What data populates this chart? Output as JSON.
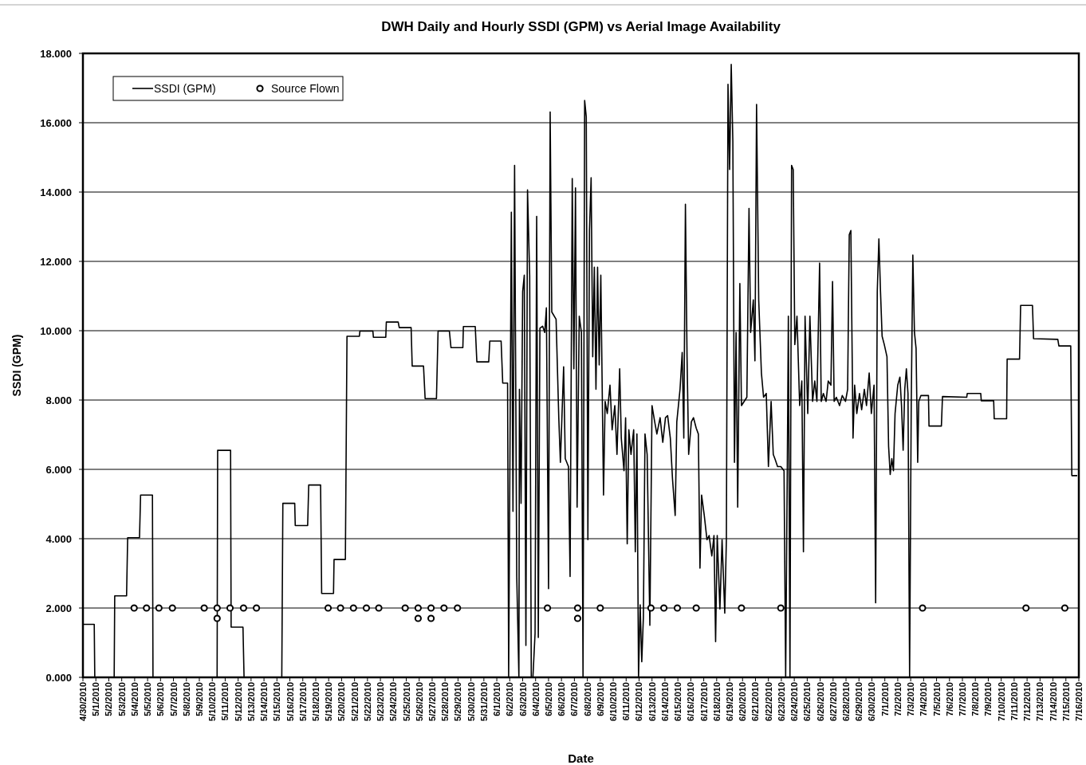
{
  "chart_data": {
    "type": "line",
    "title": "DWH Daily and Hourly SSDI (GPM) vs Aerial Image Availability",
    "xlabel": "Date",
    "ylabel": "SSDI (GPM)",
    "xlim": [
      "2010-04-30",
      "2010-07-16"
    ],
    "xticks": [
      {
        "value": "2010-04-30",
        "label": "4/30/2010"
      },
      {
        "value": "2010-05-01",
        "label": "5/1/2010"
      },
      {
        "value": "2010-05-02",
        "label": "5/2/2010"
      },
      {
        "value": "2010-05-03",
        "label": "5/3/2010"
      },
      {
        "value": "2010-05-04",
        "label": "5/4/2010"
      },
      {
        "value": "2010-05-05",
        "label": "5/5/2010"
      },
      {
        "value": "2010-05-06",
        "label": "5/6/2010"
      },
      {
        "value": "2010-05-07",
        "label": "5/7/2010"
      },
      {
        "value": "2010-05-08",
        "label": "5/8/2010"
      },
      {
        "value": "2010-05-09",
        "label": "5/9/2010"
      },
      {
        "value": "2010-05-10",
        "label": "5/10/2010"
      },
      {
        "value": "2010-05-11",
        "label": "5/11/2010"
      },
      {
        "value": "2010-05-12",
        "label": "5/12/2010"
      },
      {
        "value": "2010-05-13",
        "label": "5/13/2010"
      },
      {
        "value": "2010-05-14",
        "label": "5/14/2010"
      },
      {
        "value": "2010-05-15",
        "label": "5/15/2010"
      },
      {
        "value": "2010-05-16",
        "label": "5/16/2010"
      },
      {
        "value": "2010-05-17",
        "label": "5/17/2010"
      },
      {
        "value": "2010-05-18",
        "label": "5/18/2010"
      },
      {
        "value": "2010-05-19",
        "label": "5/19/2010"
      },
      {
        "value": "2010-05-20",
        "label": "5/20/2010"
      },
      {
        "value": "2010-05-21",
        "label": "5/21/2010"
      },
      {
        "value": "2010-05-22",
        "label": "5/22/2010"
      },
      {
        "value": "2010-05-23",
        "label": "5/23/2010"
      },
      {
        "value": "2010-05-24",
        "label": "5/24/2010"
      },
      {
        "value": "2010-05-25",
        "label": "5/25/2010"
      },
      {
        "value": "2010-05-26",
        "label": "5/26/2010"
      },
      {
        "value": "2010-05-27",
        "label": "5/27/2010"
      },
      {
        "value": "2010-05-28",
        "label": "5/28/2010"
      },
      {
        "value": "2010-05-29",
        "label": "5/29/2010"
      },
      {
        "value": "2010-05-30",
        "label": "5/30/2010"
      },
      {
        "value": "2010-05-31",
        "label": "5/31/2010"
      },
      {
        "value": "2010-06-01",
        "label": "6/1/2010"
      },
      {
        "value": "2010-06-02",
        "label": "6/2/2010"
      },
      {
        "value": "2010-06-03",
        "label": "6/3/2010"
      },
      {
        "value": "2010-06-04",
        "label": "6/4/2010"
      },
      {
        "value": "2010-06-05",
        "label": "6/5/2010"
      },
      {
        "value": "2010-06-06",
        "label": "6/6/2010"
      },
      {
        "value": "2010-06-07",
        "label": "6/7/2010"
      },
      {
        "value": "2010-06-08",
        "label": "6/8/2010"
      },
      {
        "value": "2010-06-09",
        "label": "6/9/2010"
      },
      {
        "value": "2010-06-10",
        "label": "6/10/2010"
      },
      {
        "value": "2010-06-11",
        "label": "6/11/2010"
      },
      {
        "value": "2010-06-12",
        "label": "6/12/2010"
      },
      {
        "value": "2010-06-13",
        "label": "6/13/2010"
      },
      {
        "value": "2010-06-14",
        "label": "6/14/2010"
      },
      {
        "value": "2010-06-15",
        "label": "6/15/2010"
      },
      {
        "value": "2010-06-16",
        "label": "6/16/2010"
      },
      {
        "value": "2010-06-17",
        "label": "6/17/2010"
      },
      {
        "value": "2010-06-18",
        "label": "6/18/2010"
      },
      {
        "value": "2010-06-19",
        "label": "6/19/2010"
      },
      {
        "value": "2010-06-20",
        "label": "6/20/2010"
      },
      {
        "value": "2010-06-21",
        "label": "6/21/2010"
      },
      {
        "value": "2010-06-22",
        "label": "6/22/2010"
      },
      {
        "value": "2010-06-23",
        "label": "6/23/2010"
      },
      {
        "value": "2010-06-24",
        "label": "6/24/2010"
      },
      {
        "value": "2010-06-25",
        "label": "6/25/2010"
      },
      {
        "value": "2010-06-26",
        "label": "6/26/2010"
      },
      {
        "value": "2010-06-27",
        "label": "6/27/2010"
      },
      {
        "value": "2010-06-28",
        "label": "6/28/2010"
      },
      {
        "value": "2010-06-29",
        "label": "6/29/2010"
      },
      {
        "value": "2010-06-30",
        "label": "6/30/2010"
      },
      {
        "value": "2010-07-01",
        "label": "7/1/2010"
      },
      {
        "value": "2010-07-02",
        "label": "7/2/2010"
      },
      {
        "value": "2010-07-03",
        "label": "7/3/2010"
      },
      {
        "value": "2010-07-04",
        "label": "7/4/2010"
      },
      {
        "value": "2010-07-05",
        "label": "7/5/2010"
      },
      {
        "value": "2010-07-06",
        "label": "7/6/2010"
      },
      {
        "value": "2010-07-07",
        "label": "7/7/2010"
      },
      {
        "value": "2010-07-08",
        "label": "7/8/2010"
      },
      {
        "value": "2010-07-09",
        "label": "7/9/2010"
      },
      {
        "value": "2010-07-10",
        "label": "7/10/2010"
      },
      {
        "value": "2010-07-11",
        "label": "7/11/2010"
      },
      {
        "value": "2010-07-12",
        "label": "7/12/2010"
      },
      {
        "value": "2010-07-13",
        "label": "7/13/2010"
      },
      {
        "value": "2010-07-14",
        "label": "7/14/2010"
      },
      {
        "value": "2010-07-15",
        "label": "7/15/2010"
      },
      {
        "value": "2010-07-16",
        "label": "7/16/2010"
      }
    ],
    "ylim": [
      0,
      18
    ],
    "yticks": [
      {
        "value": 0,
        "label": "0.000"
      },
      {
        "value": 2,
        "label": "2.000"
      },
      {
        "value": 4,
        "label": "4.000"
      },
      {
        "value": 6,
        "label": "6.000"
      },
      {
        "value": 8,
        "label": "8.000"
      },
      {
        "value": 10,
        "label": "10.000"
      },
      {
        "value": 12,
        "label": "12.000"
      },
      {
        "value": 14,
        "label": "14.000"
      },
      {
        "value": 16,
        "label": "16.000"
      },
      {
        "value": 18,
        "label": "18.000"
      }
    ],
    "grid": "y",
    "legend": "top left",
    "series": [
      {
        "name": "SSDI (GPM)",
        "color": "#000000",
        "line_style": "solid",
        "x": [
          "2010-04-30T00:00",
          "2010-04-30T21:00",
          "2010-04-30T22:00",
          "2010-05-02T10:00",
          "2010-05-02T11:00",
          "2010-05-03T09:00",
          "2010-05-03T11:00",
          "2010-05-04T09:00",
          "2010-05-04T11:00",
          "2010-05-05T09:00",
          "2010-05-05T10:00",
          "2010-05-10T09:00",
          "2010-05-10T10:00",
          "2010-05-11T10:00",
          "2010-05-11T11:00",
          "2010-05-12T09:00",
          "2010-05-12T11:00",
          "2010-05-15T09:00",
          "2010-05-15T11:00",
          "2010-05-16T09:00",
          "2010-05-16T10:00",
          "2010-05-17T09:00",
          "2010-05-17T11:00",
          "2010-05-18T09:00",
          "2010-05-18T11:00",
          "2010-05-19T09:00",
          "2010-05-19T10:00",
          "2010-05-20T07:00",
          "2010-05-20T10:00",
          "2010-05-21T09:00",
          "2010-05-21T10:00",
          "2010-05-22T10:00",
          "2010-05-22T11:00",
          "2010-05-23T10:00",
          "2010-05-23T11:00",
          "2010-05-24T09:00",
          "2010-05-24T11:00",
          "2010-05-25T09:00",
          "2010-05-25T11:00",
          "2010-05-26T08:00",
          "2010-05-26T11:00",
          "2010-05-27T08:00",
          "2010-05-27T11:00",
          "2010-05-28T08:00",
          "2010-05-28T11:00",
          "2010-05-29T09:00",
          "2010-05-29T10:00",
          "2010-05-30T08:00",
          "2010-05-30T11:00",
          "2010-05-31T09:00",
          "2010-05-31T11:00",
          "2010-06-01T08:00",
          "2010-06-01T11:00",
          "2010-06-01T19:00",
          "2010-06-01T20:00",
          "2010-06-01T22:00",
          "2010-06-02T03:00",
          "2010-06-02T06:00",
          "2010-06-02T09:00",
          "2010-06-02T13:00",
          "2010-06-02T17:00",
          "2010-06-02T18:00",
          "2010-06-02T21:00",
          "2010-06-03T00:00",
          "2010-06-03T03:00",
          "2010-06-03T06:00",
          "2010-06-03T09:00",
          "2010-06-03T13:00",
          "2010-06-03T16:00",
          "2010-06-03T19:00",
          "2010-06-03T23:00",
          "2010-06-04T02:00",
          "2010-06-04T05:00",
          "2010-06-04T08:00",
          "2010-06-04T13:00",
          "2010-06-04T17:00",
          "2010-06-04T20:00",
          "2010-06-05T00:00",
          "2010-06-05T03:00",
          "2010-06-05T06:00",
          "2010-06-05T14:00",
          "2010-06-05T19:00",
          "2010-06-05T22:00",
          "2010-06-06T04:00",
          "2010-06-06T07:00",
          "2010-06-06T13:00",
          "2010-06-06T16:00",
          "2010-06-06T20:00",
          "2010-06-06T23:00",
          "2010-06-07T02:00",
          "2010-06-07T05:00",
          "2010-06-07T09:00",
          "2010-06-07T13:00",
          "2010-06-07T16:00",
          "2010-06-07T19:00",
          "2010-06-07T22:00",
          "2010-06-08T01:00",
          "2010-06-08T04:00",
          "2010-06-08T07:00",
          "2010-06-08T10:00",
          "2010-06-08T13:00",
          "2010-06-08T16:00",
          "2010-06-08T19:00",
          "2010-06-08T22:00",
          "2010-06-09T01:00",
          "2010-06-09T06:00",
          "2010-06-09T09:00",
          "2010-06-09T13:00",
          "2010-06-09T18:00",
          "2010-06-09T22:00",
          "2010-06-10T03:00",
          "2010-06-10T07:00",
          "2010-06-10T12:00",
          "2010-06-10T15:00",
          "2010-06-10T20:00",
          "2010-06-10T23:00",
          "2010-06-11T02:00",
          "2010-06-11T05:00",
          "2010-06-11T09:00",
          "2010-06-11T14:00",
          "2010-06-11T17:00",
          "2010-06-11T20:00",
          "2010-06-11T23:00",
          "2010-06-12T02:00",
          "2010-06-12T05:00",
          "2010-06-12T08:00",
          "2010-06-12T11:00",
          "2010-06-12T15:00",
          "2010-06-12T20:00",
          "2010-06-13T00:00",
          "2010-06-13T05:00",
          "2010-06-13T09:00",
          "2010-06-13T15:00",
          "2010-06-13T20:00",
          "2010-06-14T01:00",
          "2010-06-14T05:00",
          "2010-06-14T10:00",
          "2010-06-14T14:00",
          "2010-06-14T19:00",
          "2010-06-14T22:00",
          "2010-06-15T04:00",
          "2010-06-15T08:00",
          "2010-06-15T11:00",
          "2010-06-15T14:00",
          "2010-06-15T17:00",
          "2010-06-15T20:00",
          "2010-06-16T01:00",
          "2010-06-16T05:00",
          "2010-06-16T10:00",
          "2010-06-16T14:00",
          "2010-06-16T17:00",
          "2010-06-16T20:00",
          "2010-06-17T01:00",
          "2010-06-17T06:00",
          "2010-06-17T10:00",
          "2010-06-17T15:00",
          "2010-06-17T19:00",
          "2010-06-17T22:00",
          "2010-06-18T01:00",
          "2010-06-18T06:00",
          "2010-06-18T10:00",
          "2010-06-18T15:00",
          "2010-06-18T18:00",
          "2010-06-18T21:00",
          "2010-06-19T00:00",
          "2010-06-19T03:00",
          "2010-06-19T06:00",
          "2010-06-19T09:00",
          "2010-06-19T12:00",
          "2010-06-19T15:00",
          "2010-06-19T19:00",
          "2010-06-19T22:00",
          "2010-06-20T03:00",
          "2010-06-20T08:00",
          "2010-06-20T12:00",
          "2010-06-20T15:00",
          "2010-06-20T20:00",
          "2010-06-20T23:00",
          "2010-06-21T02:00",
          "2010-06-21T06:00",
          "2010-06-21T11:00",
          "2010-06-21T15:00",
          "2010-06-21T20:00",
          "2010-06-22T00:00",
          "2010-06-22T05:00",
          "2010-06-22T09:00",
          "2010-06-22T12:00",
          "2010-06-22T17:00",
          "2010-06-22T23:00",
          "2010-06-23T05:00",
          "2010-06-23T08:00",
          "2010-06-23T11:00",
          "2010-06-23T13:00",
          "2010-06-23T16:00",
          "2010-06-23T19:00",
          "2010-06-23T22:00",
          "2010-06-24T01:00",
          "2010-06-24T05:00",
          "2010-06-24T10:00",
          "2010-06-24T14:00",
          "2010-06-24T17:00",
          "2010-06-24T20:00",
          "2010-06-25T01:00",
          "2010-06-25T05:00",
          "2010-06-25T10:00",
          "2010-06-25T14:00",
          "2010-06-25T18:00",
          "2010-06-25T23:00",
          "2010-06-26T02:00",
          "2010-06-26T06:00",
          "2010-06-26T11:00",
          "2010-06-26T15:00",
          "2010-06-26T20:00",
          "2010-06-26T23:00",
          "2010-06-27T02:00",
          "2010-06-27T06:00",
          "2010-06-27T12:00",
          "2010-06-27T17:00",
          "2010-06-27T23:00",
          "2010-06-28T03:00",
          "2010-06-28T06:00",
          "2010-06-28T09:00",
          "2010-06-28T13:00",
          "2010-06-28T16:00",
          "2010-06-28T20:00",
          "2010-06-29T01:00",
          "2010-06-29T05:00",
          "2010-06-29T10:00",
          "2010-06-29T14:00",
          "2010-06-29T19:00",
          "2010-06-29T23:00",
          "2010-06-30T04:00",
          "2010-06-30T07:00",
          "2010-06-30T10:00",
          "2010-06-30T13:00",
          "2010-06-30T16:00",
          "2010-06-30T19:00",
          "2010-06-30T23:00",
          "2010-07-01T04:00",
          "2010-07-01T07:00",
          "2010-07-01T10:00",
          "2010-07-01T13:00",
          "2010-07-01T16:00",
          "2010-07-01T19:00",
          "2010-07-02T00:00",
          "2010-07-02T04:00",
          "2010-07-02T07:00",
          "2010-07-02T10:00",
          "2010-07-02T13:00",
          "2010-07-02T16:00",
          "2010-07-02T19:00",
          "2010-07-02T22:00",
          "2010-07-03T01:00",
          "2010-07-03T04:00",
          "2010-07-03T07:00",
          "2010-07-03T10:00",
          "2010-07-03T13:00",
          "2010-07-03T15:00",
          "2010-07-03T19:00",
          "2010-07-04T09:00",
          "2010-07-04T10:00",
          "2010-07-05T09:00",
          "2010-07-05T11:00",
          "2010-07-07T08:00",
          "2010-07-07T09:00",
          "2010-07-08T10:00",
          "2010-07-08T11:00",
          "2010-07-09T10:00",
          "2010-07-09T11:00",
          "2010-07-10T10:00",
          "2010-07-10T11:00",
          "2010-07-11T10:00",
          "2010-07-11T12:00",
          "2010-07-12T10:00",
          "2010-07-12T12:00",
          "2010-07-14T09:00",
          "2010-07-14T11:00",
          "2010-07-15T09:00",
          "2010-07-15T11:00",
          "2010-07-15T21:00"
        ],
        "values": [
          1.53,
          1.53,
          0,
          0,
          2.35,
          2.35,
          4.03,
          4.03,
          5.26,
          5.26,
          0,
          0,
          6.55,
          6.55,
          1.45,
          1.45,
          0,
          0,
          5.02,
          5.02,
          4.38,
          4.38,
          5.55,
          5.55,
          2.42,
          2.42,
          3.4,
          3.4,
          9.84,
          9.84,
          9.99,
          9.99,
          9.81,
          9.81,
          10.25,
          10.25,
          10.09,
          10.09,
          8.98,
          8.98,
          8.04,
          8.04,
          9.99,
          9.99,
          9.51,
          9.51,
          10.12,
          10.12,
          9.1,
          9.1,
          9.7,
          9.7,
          8.49,
          8.49,
          8.49,
          0,
          13.42,
          4.79,
          14.77,
          2.91,
          0,
          8.31,
          5.02,
          11.13,
          11.6,
          0.92,
          14.06,
          11.6,
          0,
          0,
          1.27,
          13.3,
          1.15,
          10.07,
          10.13,
          9.95,
          10.66,
          2.56,
          16.31,
          10.54,
          10.33,
          7.49,
          6.2,
          8.96,
          6.31,
          6.08,
          2.91,
          14.39,
          8.9,
          14.12,
          4.91,
          10.42,
          9.95,
          0,
          16.64,
          16.17,
          3.97,
          12.89,
          14.41,
          9.25,
          11.83,
          8.31,
          11.83,
          9.01,
          11.6,
          5.26,
          7.96,
          7.61,
          8.43,
          7.14,
          7.84,
          6.43,
          8.9,
          6.9,
          5.96,
          7.49,
          3.85,
          7.14,
          6.43,
          7.14,
          3.62,
          7.02,
          0,
          2.09,
          0.45,
          1.74,
          7.02,
          6.43,
          1.5,
          7.84,
          7.37,
          7.02,
          7.49,
          6.78,
          7.49,
          7.55,
          6.9,
          5.73,
          4.67,
          7.37,
          8.31,
          9.37,
          6.9,
          13.65,
          9.25,
          6.43,
          7.37,
          7.49,
          7.19,
          7.02,
          3.15,
          5.26,
          4.67,
          3.97,
          4.09,
          3.5,
          4.09,
          1.03,
          4.09,
          1.97,
          3.97,
          1.85,
          3.97,
          17.11,
          14.65,
          17.68,
          15.47,
          6.2,
          9.95,
          4.91,
          11.36,
          7.84,
          7.96,
          8.08,
          13.53,
          9.95,
          10.89,
          9.13,
          16.53,
          10.89,
          8.78,
          8.08,
          8.19,
          6.08,
          7.96,
          6.43,
          6.31,
          6.08,
          6.08,
          5.96,
          0,
          5.96,
          10.42,
          0,
          14.77,
          14.65,
          9.6,
          10.42,
          7.84,
          8.55,
          3.62,
          10.42,
          7.61,
          10.42,
          7.96,
          8.55,
          7.96,
          11.95,
          7.96,
          8.19,
          7.96,
          8.55,
          8.43,
          11.42,
          7.96,
          8.08,
          7.84,
          8.13,
          7.96,
          8.31,
          12.77,
          12.89,
          6.9,
          8.43,
          7.61,
          8.19,
          7.72,
          8.31,
          7.84,
          8.78,
          7.61,
          8.43,
          2.15,
          11.13,
          12.65,
          11.13,
          9.84,
          9.6,
          9.25,
          6.67,
          5.85,
          6.31,
          5.96,
          7.61,
          8.43,
          8.66,
          7.84,
          6.55,
          8.31,
          8.9,
          8.19,
          0,
          7.84,
          12.18,
          9.95,
          9.49,
          6.2,
          7.96,
          8.13,
          8.13,
          7.25,
          7.25,
          8.1,
          8.08,
          8.19,
          8.19,
          7.98,
          7.98,
          7.46,
          7.46,
          9.18,
          9.18,
          10.73,
          10.73,
          9.77,
          9.75,
          9.56,
          9.56,
          5.82,
          5.82
        ]
      },
      {
        "name": "Source Flown",
        "type": "scatter",
        "color": "#000000",
        "marker": "circle",
        "x": [
          "2010-05-03T23:00",
          "2010-05-04T22:00",
          "2010-05-05T21:00",
          "2010-05-06T22:00",
          "2010-05-09T09:00",
          "2010-05-10T09:00",
          "2010-05-10T09:00",
          "2010-05-11T09:00",
          "2010-05-12T10:00",
          "2010-05-13T10:00",
          "2010-05-18T23:00",
          "2010-05-19T22:00",
          "2010-05-20T22:00",
          "2010-05-21T22:00",
          "2010-05-22T21:00",
          "2010-05-24T22:00",
          "2010-05-25T22:00",
          "2010-05-25T22:00",
          "2010-05-26T22:00",
          "2010-05-26T22:00",
          "2010-05-27T22:00",
          "2010-05-28T23:00",
          "2010-06-04T22:00",
          "2010-06-07T06:00",
          "2010-06-07T06:00",
          "2010-06-09T00:00",
          "2010-06-12T22:00",
          "2010-06-13T22:00",
          "2010-06-14T23:00",
          "2010-06-16T10:00",
          "2010-06-19T22:00",
          "2010-06-22T23:00",
          "2010-07-03T22:00",
          "2010-07-11T22:00",
          "2010-07-14T22:00"
        ],
        "values": [
          2,
          2,
          2,
          2,
          2,
          2,
          1.7,
          2,
          2,
          2,
          2,
          2,
          2,
          2,
          2,
          2,
          2,
          1.7,
          2,
          1.7,
          2,
          2,
          2,
          2,
          1.7,
          2,
          2,
          2,
          2,
          2,
          2,
          2,
          2,
          2,
          2
        ]
      }
    ]
  }
}
